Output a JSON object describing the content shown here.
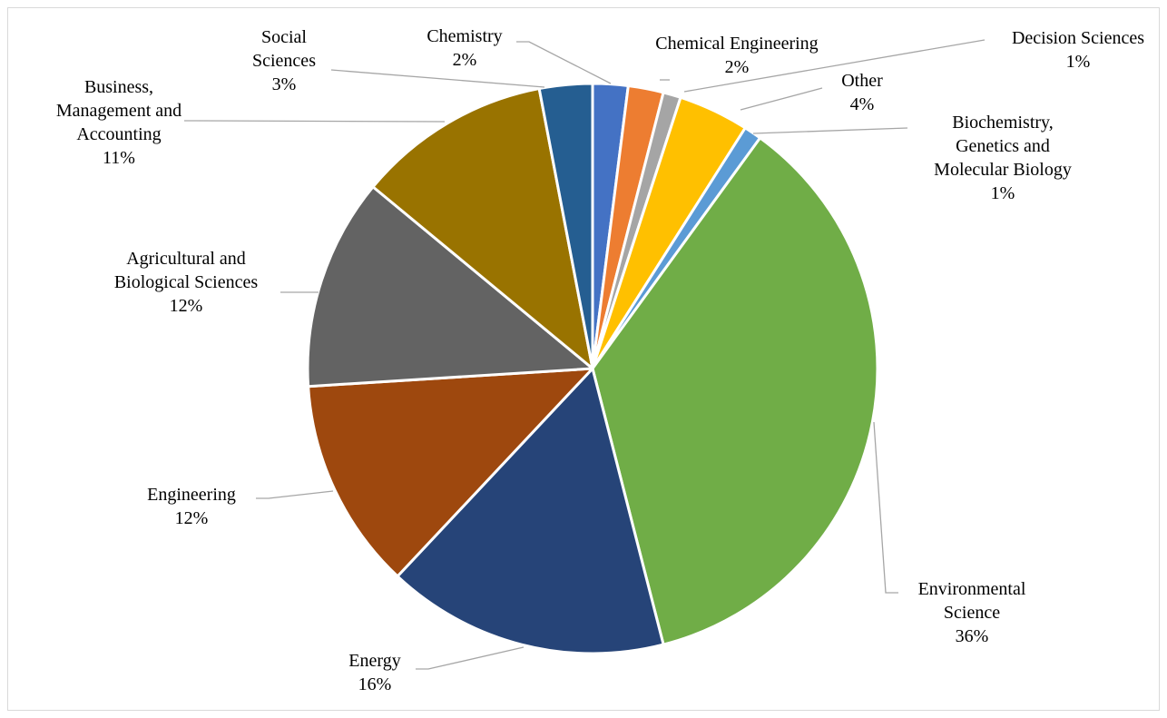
{
  "chart_data": {
    "type": "pie",
    "start_angle_deg": 0,
    "direction": "clockwise",
    "slices": [
      {
        "label": [
          "Chemistry"
        ],
        "percent_label": "2%",
        "value": 2,
        "color": "#4472c4"
      },
      {
        "label": [
          "Chemical Engineering"
        ],
        "percent_label": "2%",
        "value": 2,
        "color": "#ed7d31"
      },
      {
        "label": [
          "Decision Sciences"
        ],
        "percent_label": "1%",
        "value": 1,
        "color": "#a5a5a5"
      },
      {
        "label": [
          "Other"
        ],
        "percent_label": "4%",
        "value": 4,
        "color": "#ffc000"
      },
      {
        "label": [
          "Biochemistry,",
          "Genetics and",
          "Molecular Biology"
        ],
        "percent_label": "1%",
        "value": 1,
        "color": "#5b9bd5"
      },
      {
        "label": [
          "Environmental",
          "Science"
        ],
        "percent_label": "36%",
        "value": 36,
        "color": "#70ad47"
      },
      {
        "label": [
          "Energy"
        ],
        "percent_label": "16%",
        "value": 16,
        "color": "#264478"
      },
      {
        "label": [
          "Engineering"
        ],
        "percent_label": "12%",
        "value": 12,
        "color": "#9e480e"
      },
      {
        "label": [
          "Agricultural and",
          "Biological Sciences"
        ],
        "percent_label": "12%",
        "value": 12,
        "color": "#636363"
      },
      {
        "label": [
          "Business,",
          "Management and",
          "Accounting"
        ],
        "percent_label": "11%",
        "value": 11,
        "color": "#997300"
      },
      {
        "label": [
          "Social",
          "Sciences"
        ],
        "percent_label": "3%",
        "value": 3,
        "color": "#255e91"
      }
    ]
  }
}
